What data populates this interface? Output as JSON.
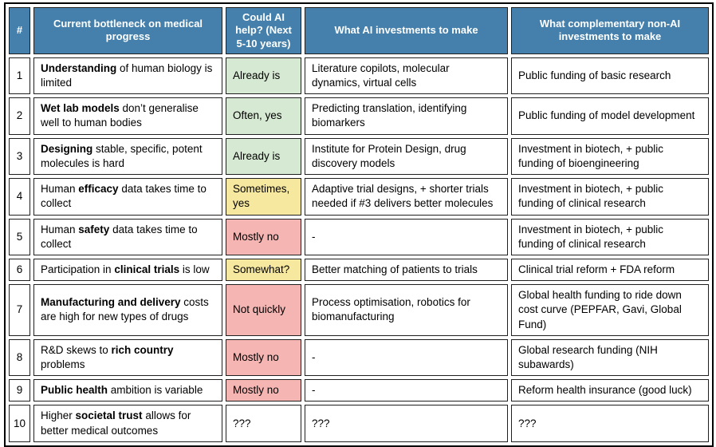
{
  "table": {
    "columns": [
      {
        "id": "num",
        "label": "#"
      },
      {
        "id": "bottleneck",
        "label": "Current bottleneck on medical progress"
      },
      {
        "id": "ai_help",
        "label": "Could AI help? (Next 5-10 years)"
      },
      {
        "id": "ai_investments",
        "label": "What AI investments to make"
      },
      {
        "id": "non_ai_investments",
        "label": "What complementary non-AI investments to make"
      }
    ],
    "status_colors": {
      "green": "#d6e9d2",
      "yellow": "#f7e8a0",
      "red": "#f5b5b3",
      "none": "#ffffff"
    },
    "rows": [
      {
        "num": "1",
        "bottleneck": [
          {
            "text": "Understanding",
            "bold": true
          },
          {
            "text": " of human biology is limited",
            "bold": false
          }
        ],
        "ai_help": "Already is",
        "ai_help_color": "green",
        "ai_investment": "Literature copilots, molecular dynamics, virtual cells",
        "non_ai_investment": "Public funding of basic research"
      },
      {
        "num": "2",
        "bottleneck": [
          {
            "text": "Wet lab models",
            "bold": true
          },
          {
            "text": " don’t generalise well to human bodies",
            "bold": false
          }
        ],
        "ai_help": "Often, yes",
        "ai_help_color": "green",
        "ai_investment": "Predicting translation, identifying biomarkers",
        "non_ai_investment": "Public funding of model development"
      },
      {
        "num": "3",
        "bottleneck": [
          {
            "text": "Designing",
            "bold": true
          },
          {
            "text": " stable, specific, potent molecules is hard",
            "bold": false
          }
        ],
        "ai_help": "Already is",
        "ai_help_color": "green",
        "ai_investment": "Institute for Protein Design, drug discovery models",
        "non_ai_investment": "Investment in biotech, + public funding of bioengineering"
      },
      {
        "num": "4",
        "bottleneck": [
          {
            "text": "Human ",
            "bold": false
          },
          {
            "text": "efficacy",
            "bold": true
          },
          {
            "text": " data takes time to collect",
            "bold": false
          }
        ],
        "ai_help": "Sometimes, yes",
        "ai_help_color": "yellow",
        "ai_investment": "Adaptive trial designs, + shorter trials needed if #3 delivers better molecules",
        "non_ai_investment": "Investment in biotech, + public funding of clinical research"
      },
      {
        "num": "5",
        "bottleneck": [
          {
            "text": "Human ",
            "bold": false
          },
          {
            "text": "safety",
            "bold": true
          },
          {
            "text": " data takes time to collect",
            "bold": false
          }
        ],
        "ai_help": "Mostly no",
        "ai_help_color": "red",
        "ai_investment": "-",
        "non_ai_investment": "Investment in biotech, + public funding of clinical research"
      },
      {
        "num": "6",
        "bottleneck": [
          {
            "text": "Participation in ",
            "bold": false
          },
          {
            "text": "clinical trials",
            "bold": true
          },
          {
            "text": " is low",
            "bold": false
          }
        ],
        "ai_help": "Somewhat?",
        "ai_help_color": "yellow",
        "ai_investment": "Better matching of patients to trials",
        "non_ai_investment": "Clinical trial reform + FDA reform"
      },
      {
        "num": "7",
        "bottleneck": [
          {
            "text": "Manufacturing and delivery",
            "bold": true
          },
          {
            "text": " costs are high for new types of drugs",
            "bold": false
          }
        ],
        "ai_help": "Not quickly",
        "ai_help_color": "red",
        "ai_investment": "Process optimisation, robotics for biomanufacturing",
        "non_ai_investment": "Global health funding to ride down cost curve (PEPFAR, Gavi, Global Fund)"
      },
      {
        "num": "8",
        "bottleneck": [
          {
            "text": "R&D skews to ",
            "bold": false
          },
          {
            "text": "rich country",
            "bold": true
          },
          {
            "text": " problems",
            "bold": false
          }
        ],
        "ai_help": "Mostly no",
        "ai_help_color": "red",
        "ai_investment": "-",
        "non_ai_investment": "Global research funding (NIH subawards)"
      },
      {
        "num": "9",
        "bottleneck": [
          {
            "text": "Public health",
            "bold": true
          },
          {
            "text": " ambition is variable",
            "bold": false
          }
        ],
        "ai_help": "Mostly no",
        "ai_help_color": "red",
        "ai_investment": "-",
        "non_ai_investment": "Reform health insurance (good luck)"
      },
      {
        "num": "10",
        "bottleneck": [
          {
            "text": "Higher ",
            "bold": false
          },
          {
            "text": "societal trust",
            "bold": true
          },
          {
            "text": " allows for better medical outcomes",
            "bold": false
          }
        ],
        "ai_help": "???",
        "ai_help_color": "none",
        "ai_investment": "???",
        "non_ai_investment": "???"
      }
    ]
  }
}
